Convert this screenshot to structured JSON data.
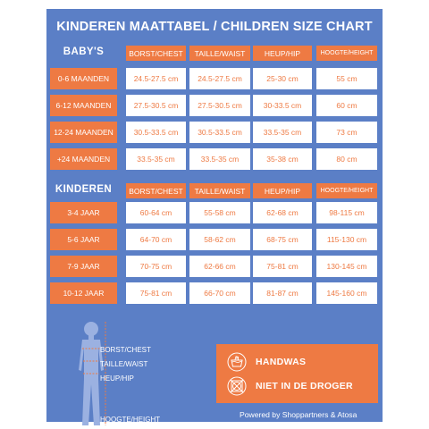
{
  "title": "KINDEREN MAATTABEL / CHILDREN SIZE CHART",
  "baby": {
    "section_label": "BABY'S",
    "columns": [
      "BORST/CHEST",
      "TAILLE/WAIST",
      "HEUP/HIP",
      "HOOGTE/HEIGHT"
    ],
    "rows": [
      {
        "label": "0-6 MAANDEN",
        "values": [
          "24.5-27.5 cm",
          "24.5-27.5 cm",
          "25-30 cm",
          "55 cm"
        ]
      },
      {
        "label": "6-12 MAANDEN",
        "values": [
          "27.5-30.5 cm",
          "27.5-30.5 cm",
          "30-33.5 cm",
          "60 cm"
        ]
      },
      {
        "label": "12-24 MAANDEN",
        "values": [
          "30.5-33.5 cm",
          "30.5-33.5 cm",
          "33.5-35 cm",
          "73 cm"
        ]
      },
      {
        "label": "+24 MAANDEN",
        "values": [
          "33.5-35 cm",
          "33.5-35 cm",
          "35-38 cm",
          "80 cm"
        ]
      }
    ]
  },
  "kids": {
    "section_label": "KINDEREN",
    "columns": [
      "BORST/CHEST",
      "TAILLE/WAIST",
      "HEUP/HIP",
      "HOOGTE/HEIGHT"
    ],
    "rows": [
      {
        "label": "3-4 JAAR",
        "values": [
          "60-64 cm",
          "55-58 cm",
          "62-68 cm",
          "98-115 cm"
        ]
      },
      {
        "label": "5-6 JAAR",
        "values": [
          "64-70 cm",
          "58-62 cm",
          "68-75 cm",
          "115-130 cm"
        ]
      },
      {
        "label": "7-9 JAAR",
        "values": [
          "70-75 cm",
          "62-66 cm",
          "75-81 cm",
          "130-145 cm"
        ]
      },
      {
        "label": "10-12 JAAR",
        "values": [
          "75-81 cm",
          "66-70 cm",
          "81-87 cm",
          "145-160 cm"
        ]
      }
    ]
  },
  "measurements": {
    "chest": "BORST/CHEST",
    "waist": "TAILLE/WAIST",
    "hip": "HEUP/HIP",
    "height": "HOOGTE/HEIGHT"
  },
  "care": {
    "handwash": "HANDWAS",
    "no_dryer": "NIET IN DE DROGER",
    "handwash_icon": "handwash-icon",
    "no_dryer_icon": "no-tumble-dry-icon"
  },
  "footer": "Powered by Shoppartners & Atosa",
  "colors": {
    "background": "#5b7fc6",
    "accent": "#ee7a43",
    "cell": "#ffffff",
    "text_light": "#ffffff"
  }
}
